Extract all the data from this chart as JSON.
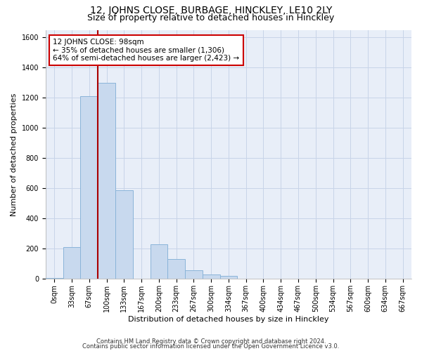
{
  "title": "12, JOHNS CLOSE, BURBAGE, HINCKLEY, LE10 2LY",
  "subtitle": "Size of property relative to detached houses in Hinckley",
  "xlabel": "Distribution of detached houses by size in Hinckley",
  "ylabel": "Number of detached properties",
  "footnote1": "Contains HM Land Registry data © Crown copyright and database right 2024.",
  "footnote2": "Contains public sector information licensed under the Open Government Licence v3.0.",
  "bar_labels": [
    "0sqm",
    "33sqm",
    "67sqm",
    "100sqm",
    "133sqm",
    "167sqm",
    "200sqm",
    "233sqm",
    "267sqm",
    "300sqm",
    "334sqm",
    "367sqm",
    "400sqm",
    "434sqm",
    "467sqm",
    "500sqm",
    "534sqm",
    "567sqm",
    "600sqm",
    "634sqm",
    "667sqm"
  ],
  "bar_values": [
    5,
    210,
    1210,
    1300,
    590,
    0,
    230,
    130,
    60,
    30,
    20,
    0,
    0,
    0,
    0,
    0,
    0,
    0,
    0,
    0,
    0
  ],
  "bar_color": "#c8d9ee",
  "bar_edge_color": "#8ab4d9",
  "property_line_color": "#aa0000",
  "annotation_text": "12 JOHNS CLOSE: 98sqm\n← 35% of detached houses are smaller (1,306)\n64% of semi-detached houses are larger (2,423) →",
  "annotation_box_color": "white",
  "annotation_box_edge": "#cc0000",
  "ylim": [
    0,
    1650
  ],
  "yticks": [
    0,
    200,
    400,
    600,
    800,
    1000,
    1200,
    1400,
    1600
  ],
  "grid_color": "#c8d4e8",
  "bg_color": "#e8eef8",
  "title_fontsize": 10,
  "subtitle_fontsize": 9,
  "axis_label_fontsize": 8,
  "tick_fontsize": 7,
  "annot_fontsize": 7.5,
  "footnote_fontsize": 6
}
